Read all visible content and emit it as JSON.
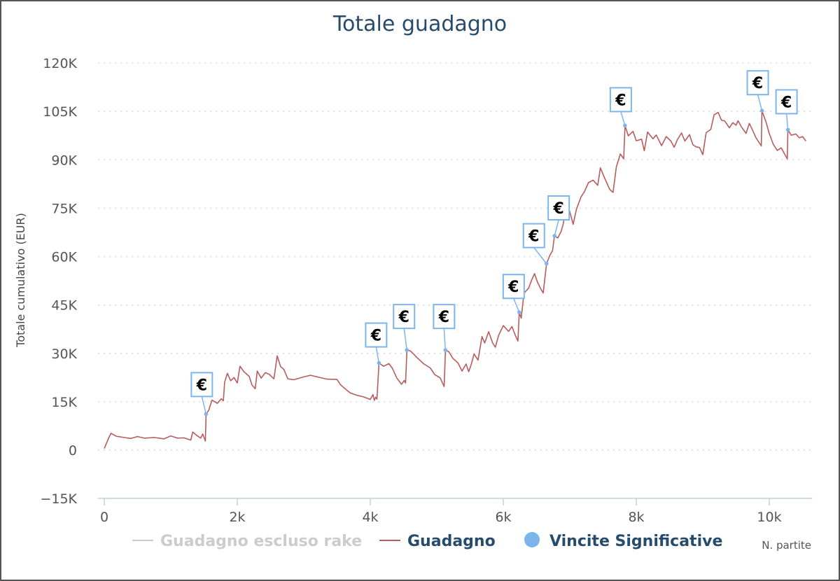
{
  "chart_data": {
    "type": "line",
    "title": "Totale guadagno",
    "ylabel": "Totale cumulativo (EUR)",
    "xlabel": "N. partite",
    "xlim": [
      0,
      10600
    ],
    "ylim": [
      -15000,
      120000
    ],
    "x_ticks": [
      0,
      2000,
      4000,
      6000,
      8000,
      10000
    ],
    "x_tick_labels": [
      "0",
      "2k",
      "4k",
      "6k",
      "8k",
      "10k"
    ],
    "y_ticks": [
      -15000,
      0,
      15000,
      30000,
      45000,
      60000,
      75000,
      90000,
      105000,
      120000
    ],
    "y_tick_labels": [
      "−15K",
      "0",
      "15K",
      "30K",
      "45K",
      "60K",
      "75K",
      "90K",
      "105K",
      "120K"
    ],
    "grid": "horizontal dotted",
    "legend_position": "bottom",
    "colors": {
      "title": "#274b6d",
      "guadagno": "#b85c5c",
      "escluso_rake_hidden": "#cccccc",
      "vincite": "#7cb5ec",
      "axis": "#c0d0e0",
      "grid": "#d8d8d8"
    },
    "series": [
      {
        "name": "Guadagno escluso rake",
        "hidden": true,
        "points": []
      },
      {
        "name": "Guadagno",
        "points": [
          [
            0,
            500
          ],
          [
            60,
            3500
          ],
          [
            100,
            5200
          ],
          [
            180,
            4300
          ],
          [
            300,
            3900
          ],
          [
            400,
            3600
          ],
          [
            500,
            4200
          ],
          [
            600,
            3700
          ],
          [
            750,
            3900
          ],
          [
            900,
            3500
          ],
          [
            1000,
            4400
          ],
          [
            1100,
            3700
          ],
          [
            1200,
            3800
          ],
          [
            1300,
            3100
          ],
          [
            1330,
            5600
          ],
          [
            1400,
            4400
          ],
          [
            1450,
            3700
          ],
          [
            1480,
            5000
          ],
          [
            1520,
            2800
          ],
          [
            1530,
            11200
          ],
          [
            1570,
            12300
          ],
          [
            1620,
            15500
          ],
          [
            1700,
            14500
          ],
          [
            1760,
            15900
          ],
          [
            1790,
            15300
          ],
          [
            1810,
            21000
          ],
          [
            1850,
            23800
          ],
          [
            1900,
            21500
          ],
          [
            1950,
            22500
          ],
          [
            2000,
            20800
          ],
          [
            2040,
            26000
          ],
          [
            2100,
            24300
          ],
          [
            2180,
            22800
          ],
          [
            2220,
            20200
          ],
          [
            2270,
            19000
          ],
          [
            2300,
            24500
          ],
          [
            2360,
            22300
          ],
          [
            2420,
            24000
          ],
          [
            2480,
            23500
          ],
          [
            2550,
            22100
          ],
          [
            2600,
            29200
          ],
          [
            2650,
            25900
          ],
          [
            2700,
            25000
          ],
          [
            2760,
            22100
          ],
          [
            2850,
            21800
          ],
          [
            3000,
            22700
          ],
          [
            3100,
            23200
          ],
          [
            3200,
            22700
          ],
          [
            3350,
            22000
          ],
          [
            3500,
            21900
          ],
          [
            3550,
            20300
          ],
          [
            3650,
            18500
          ],
          [
            3700,
            17700
          ],
          [
            3800,
            17000
          ],
          [
            3900,
            16500
          ],
          [
            4000,
            15700
          ],
          [
            4040,
            17200
          ],
          [
            4060,
            15400
          ],
          [
            4080,
            16400
          ],
          [
            4100,
            15800
          ],
          [
            4130,
            27000
          ],
          [
            4200,
            26000
          ],
          [
            4280,
            26800
          ],
          [
            4330,
            25400
          ],
          [
            4400,
            22300
          ],
          [
            4470,
            20400
          ],
          [
            4510,
            21600
          ],
          [
            4530,
            20800
          ],
          [
            4550,
            31000
          ],
          [
            4600,
            30800
          ],
          [
            4650,
            29800
          ],
          [
            4700,
            28700
          ],
          [
            4800,
            26800
          ],
          [
            4900,
            25500
          ],
          [
            4970,
            23400
          ],
          [
            5050,
            22400
          ],
          [
            5110,
            19700
          ],
          [
            5130,
            31000
          ],
          [
            5180,
            30500
          ],
          [
            5240,
            28500
          ],
          [
            5320,
            27000
          ],
          [
            5380,
            24500
          ],
          [
            5440,
            26700
          ],
          [
            5480,
            24300
          ],
          [
            5520,
            26700
          ],
          [
            5560,
            29800
          ],
          [
            5620,
            27900
          ],
          [
            5680,
            35200
          ],
          [
            5720,
            33200
          ],
          [
            5780,
            36700
          ],
          [
            5840,
            33200
          ],
          [
            5880,
            31900
          ],
          [
            5930,
            35600
          ],
          [
            6000,
            38600
          ],
          [
            6080,
            36800
          ],
          [
            6130,
            38300
          ],
          [
            6180,
            35600
          ],
          [
            6220,
            33800
          ],
          [
            6240,
            42700
          ],
          [
            6270,
            40900
          ],
          [
            6310,
            48600
          ],
          [
            6380,
            50200
          ],
          [
            6430,
            52900
          ],
          [
            6470,
            54700
          ],
          [
            6510,
            52200
          ],
          [
            6560,
            50100
          ],
          [
            6600,
            48700
          ],
          [
            6650,
            57800
          ],
          [
            6700,
            60400
          ],
          [
            6740,
            61800
          ],
          [
            6770,
            66400
          ],
          [
            6820,
            65800
          ],
          [
            6870,
            67800
          ],
          [
            6900,
            70000
          ],
          [
            6950,
            75800
          ],
          [
            7000,
            73900
          ],
          [
            7050,
            70000
          ],
          [
            7100,
            74700
          ],
          [
            7170,
            78500
          ],
          [
            7220,
            80100
          ],
          [
            7280,
            82900
          ],
          [
            7350,
            83700
          ],
          [
            7420,
            82100
          ],
          [
            7460,
            87500
          ],
          [
            7520,
            84500
          ],
          [
            7600,
            80800
          ],
          [
            7650,
            79900
          ],
          [
            7700,
            87800
          ],
          [
            7760,
            91800
          ],
          [
            7810,
            90300
          ],
          [
            7830,
            100600
          ],
          [
            7880,
            97400
          ],
          [
            7950,
            98800
          ],
          [
            8000,
            95900
          ],
          [
            8080,
            96400
          ],
          [
            8120,
            92800
          ],
          [
            8170,
            98600
          ],
          [
            8250,
            96500
          ],
          [
            8300,
            97700
          ],
          [
            8380,
            94400
          ],
          [
            8450,
            97200
          ],
          [
            8520,
            95800
          ],
          [
            8570,
            93900
          ],
          [
            8620,
            96300
          ],
          [
            8680,
            98300
          ],
          [
            8730,
            95800
          ],
          [
            8800,
            97800
          ],
          [
            8850,
            94700
          ],
          [
            8900,
            94000
          ],
          [
            8950,
            93800
          ],
          [
            9000,
            91600
          ],
          [
            9050,
            98400
          ],
          [
            9120,
            99400
          ],
          [
            9170,
            103900
          ],
          [
            9230,
            104700
          ],
          [
            9280,
            102300
          ],
          [
            9330,
            102000
          ],
          [
            9400,
            99900
          ],
          [
            9450,
            101500
          ],
          [
            9500,
            100700
          ],
          [
            9530,
            102100
          ],
          [
            9580,
            100200
          ],
          [
            9650,
            98200
          ],
          [
            9700,
            101300
          ],
          [
            9750,
            99100
          ],
          [
            9800,
            96800
          ],
          [
            9880,
            94300
          ],
          [
            9890,
            105200
          ],
          [
            9950,
            101700
          ],
          [
            10000,
            98100
          ],
          [
            10060,
            94800
          ],
          [
            10120,
            92900
          ],
          [
            10180,
            93700
          ],
          [
            10240,
            91400
          ],
          [
            10270,
            90300
          ],
          [
            10280,
            99300
          ],
          [
            10330,
            97600
          ],
          [
            10400,
            98000
          ],
          [
            10450,
            96800
          ],
          [
            10500,
            97200
          ],
          [
            10550,
            95800
          ]
        ]
      },
      {
        "name": "Vincite Significative",
        "marker": "flag",
        "flag_text": "€",
        "points": [
          [
            1530,
            11200
          ],
          [
            4130,
            27000
          ],
          [
            4550,
            31000
          ],
          [
            5130,
            31000
          ],
          [
            6240,
            42700
          ],
          [
            6650,
            57800
          ],
          [
            6770,
            66400
          ],
          [
            7830,
            100600
          ],
          [
            9890,
            105200
          ],
          [
            10280,
            99300
          ]
        ]
      }
    ]
  }
}
